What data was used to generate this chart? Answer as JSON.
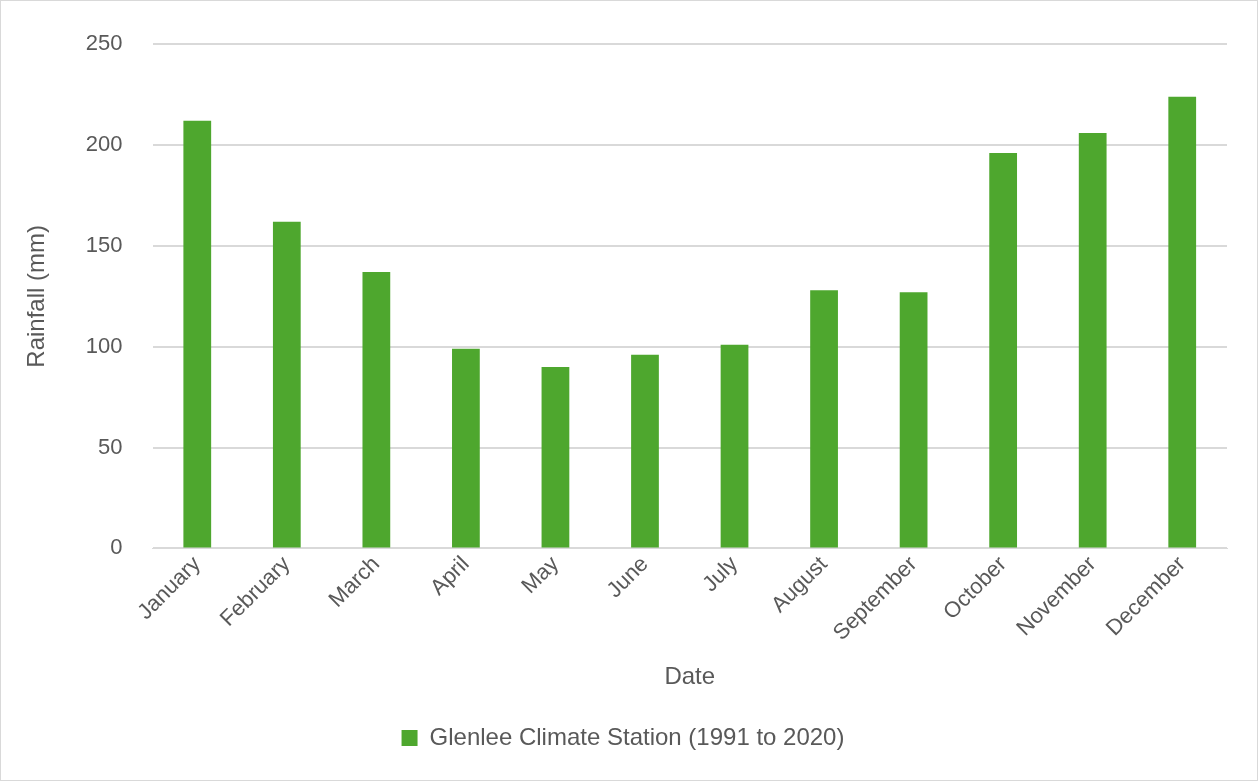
{
  "chart_data": {
    "type": "bar",
    "xlabel": "Date",
    "ylabel": "Rainfall (mm)",
    "categories": [
      "January",
      "February",
      "March",
      "April",
      "May",
      "June",
      "July",
      "August",
      "September",
      "October",
      "November",
      "December"
    ],
    "series": [
      {
        "name": "Glenlee Climate Station (1991 to 2020)",
        "color": "#4ea72e",
        "values": [
          212,
          162,
          137,
          99,
          90,
          96,
          101,
          128,
          127,
          196,
          206,
          224
        ]
      }
    ],
    "ylim": [
      0,
      250
    ],
    "yticks": [
      0,
      50,
      100,
      150,
      200,
      250
    ],
    "grid": "y",
    "legend": "bottom"
  }
}
